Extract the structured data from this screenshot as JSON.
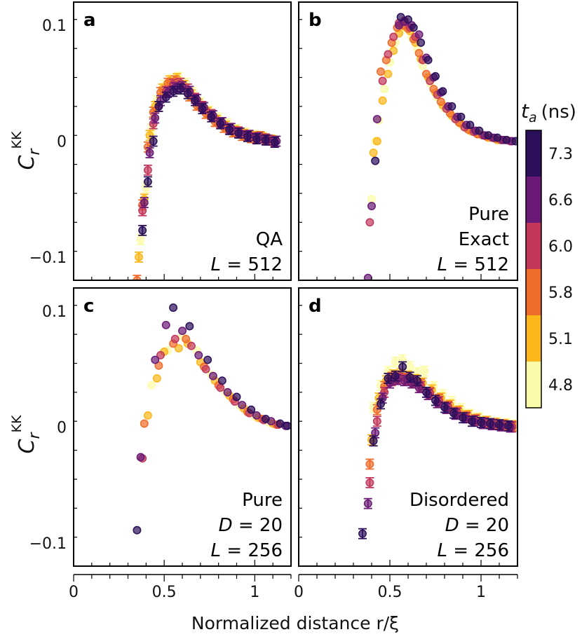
{
  "figure": {
    "xlabel": "Normalized distance r/ξ",
    "ylabel_main": "C",
    "ylabel_sub": "r",
    "ylabel_sup": "KK",
    "x_ticks": [
      "0",
      "0.5",
      "1"
    ],
    "y_ticks": [
      "0.1",
      "0",
      "−0.1"
    ]
  },
  "colorbar": {
    "title_main": "t",
    "title_sub": "a",
    "title_unit": "(ns)",
    "labels": [
      "7.3",
      "6.6",
      "6.0",
      "5.8",
      "5.1",
      "4.8"
    ],
    "colors": [
      "#2c0f5a",
      "#6a1a76",
      "#c2375a",
      "#ef6b2a",
      "#fbb61a",
      "#fcfbaa"
    ]
  },
  "chart_data": [
    {
      "type": "scatter",
      "panel": "a",
      "annotation": [
        "QA",
        "L = 512"
      ],
      "xlim": [
        0,
        1.2
      ],
      "ylim": [
        -0.12,
        0.12
      ],
      "series": [
        {
          "color": "#fcfbaa",
          "x": [
            0.37,
            0.4,
            0.43,
            0.46,
            0.5,
            0.54,
            0.58,
            0.62,
            0.66,
            0.7,
            0.75,
            0.8,
            0.85,
            0.9,
            0.95,
            1.0,
            1.05,
            1.1
          ],
          "y": [
            -0.085,
            -0.04,
            0.01,
            0.035,
            0.048,
            0.053,
            0.055,
            0.05,
            0.042,
            0.033,
            0.026,
            0.02,
            0.015,
            0.01,
            0.007,
            0.005,
            0.003,
            0.001
          ]
        },
        {
          "color": "#fbb61a",
          "x": [
            0.36,
            0.39,
            0.42,
            0.45,
            0.49,
            0.53,
            0.57,
            0.61,
            0.65,
            0.69,
            0.74,
            0.79,
            0.84,
            0.89,
            0.94,
            0.99,
            1.04,
            1.09
          ],
          "y": [
            -0.1,
            -0.05,
            0.005,
            0.03,
            0.045,
            0.052,
            0.054,
            0.048,
            0.04,
            0.032,
            0.025,
            0.018,
            0.013,
            0.009,
            0.006,
            0.004,
            0.003,
            0.001
          ]
        },
        {
          "color": "#ef6b2a",
          "x": [
            0.35,
            0.38,
            0.41,
            0.44,
            0.48,
            0.52,
            0.56,
            0.6,
            0.64,
            0.68,
            0.73,
            0.78,
            0.83,
            0.88,
            0.93,
            0.98,
            1.03,
            1.08
          ],
          "y": [
            -0.12,
            -0.055,
            -0.005,
            0.025,
            0.042,
            0.05,
            0.052,
            0.047,
            0.039,
            0.031,
            0.024,
            0.017,
            0.012,
            0.008,
            0.005,
            0.003,
            0.004,
            0.001
          ]
        },
        {
          "color": "#c2375a",
          "x": [
            0.38,
            0.41,
            0.44,
            0.47,
            0.51,
            0.55,
            0.59,
            0.63,
            0.67,
            0.71,
            0.76,
            0.81,
            0.86,
            0.91,
            0.96,
            1.01,
            1.06,
            1.11
          ],
          "y": [
            -0.06,
            -0.025,
            0.015,
            0.03,
            0.043,
            0.049,
            0.05,
            0.045,
            0.037,
            0.03,
            0.023,
            0.016,
            0.011,
            0.008,
            0.005,
            0.003,
            0.002,
            0.0
          ]
        },
        {
          "color": "#6a1a76",
          "x": [
            0.39,
            0.42,
            0.45,
            0.48,
            0.52,
            0.56,
            0.6,
            0.64,
            0.68,
            0.72,
            0.77,
            0.82,
            0.87,
            0.92,
            0.97,
            1.02,
            1.07,
            1.12
          ],
          "y": [
            -0.053,
            -0.01,
            0.02,
            0.035,
            0.042,
            0.046,
            0.047,
            0.043,
            0.036,
            0.029,
            0.022,
            0.016,
            0.011,
            0.007,
            0.005,
            0.003,
            0.001,
            0.0
          ]
        },
        {
          "color": "#2c0f5a",
          "x": [
            0.38,
            0.41,
            0.44,
            0.47,
            0.51,
            0.55,
            0.59,
            0.63,
            0.67,
            0.71,
            0.76,
            0.81,
            0.86,
            0.91,
            0.96,
            1.01,
            1.06,
            1.11
          ],
          "y": [
            -0.077,
            -0.035,
            0.0,
            0.03,
            0.038,
            0.043,
            0.045,
            0.041,
            0.035,
            0.028,
            0.021,
            0.015,
            0.01,
            0.007,
            0.004,
            0.002,
            0.001,
            -0.001
          ]
        }
      ]
    },
    {
      "type": "scatter",
      "panel": "b",
      "annotation": [
        "Pure",
        "Exact",
        "L = 512"
      ],
      "xlim": [
        0,
        1.2
      ],
      "ylim": [
        -0.12,
        0.12
      ],
      "series": [
        {
          "color": "#fcfbaa",
          "x": [
            0.4,
            0.42,
            0.44,
            0.47,
            0.5,
            0.53,
            0.56,
            0.59,
            0.62,
            0.65,
            0.68,
            0.72,
            0.76,
            0.8,
            0.85,
            0.9,
            0.95,
            1.0,
            1.05,
            1.1
          ],
          "y": [
            -0.05,
            0.0,
            0.018,
            0.045,
            0.068,
            0.085,
            0.096,
            0.098,
            0.09,
            0.08,
            0.065,
            0.05,
            0.038,
            0.028,
            0.02,
            0.013,
            0.008,
            0.005,
            0.003,
            0.001
          ]
        },
        {
          "color": "#fbb61a",
          "x": [
            0.41,
            0.43,
            0.46,
            0.49,
            0.52,
            0.55,
            0.58,
            0.61,
            0.64,
            0.67,
            0.71,
            0.75,
            0.79,
            0.84,
            0.89,
            0.94,
            0.99,
            1.04,
            1.09
          ],
          "y": [
            -0.01,
            0.0,
            0.035,
            0.058,
            0.078,
            0.093,
            0.099,
            0.095,
            0.085,
            0.071,
            0.055,
            0.042,
            0.031,
            0.022,
            0.015,
            0.009,
            0.006,
            0.003,
            0.001
          ]
        },
        {
          "color": "#ef6b2a",
          "x": [
            0.45,
            0.48,
            0.51,
            0.54,
            0.57,
            0.6,
            0.63,
            0.66,
            0.7,
            0.74,
            0.78,
            0.83,
            0.88,
            0.93,
            0.98,
            1.03,
            1.08,
            1.13
          ],
          "y": [
            0.06,
            0.07,
            0.085,
            0.098,
            0.1,
            0.097,
            0.088,
            0.076,
            0.058,
            0.045,
            0.034,
            0.024,
            0.016,
            0.01,
            0.006,
            0.004,
            0.002,
            0.001
          ]
        },
        {
          "color": "#c2375a",
          "x": [
            0.39,
            0.46,
            0.49,
            0.52,
            0.55,
            0.58,
            0.61,
            0.64,
            0.68,
            0.72,
            0.76,
            0.81,
            0.86,
            0.91,
            0.96,
            1.01,
            1.06,
            1.11,
            1.16
          ],
          "y": [
            -0.07,
            0.052,
            0.075,
            0.09,
            0.102,
            0.104,
            0.098,
            0.09,
            0.07,
            0.052,
            0.04,
            0.028,
            0.019,
            0.012,
            0.008,
            0.005,
            0.003,
            0.001,
            0.0
          ]
        },
        {
          "color": "#6a1a76",
          "x": [
            0.38,
            0.4,
            0.43,
            0.55,
            0.58,
            0.62,
            0.66,
            0.7,
            0.74,
            0.78,
            0.82,
            0.87,
            0.92,
            0.97,
            1.02,
            1.07,
            1.12,
            1.17
          ],
          "y": [
            -0.118,
            -0.056,
            0.019,
            0.1,
            0.103,
            0.1,
            0.092,
            0.072,
            0.055,
            0.042,
            0.03,
            0.021,
            0.014,
            0.009,
            0.005,
            0.003,
            0.001,
            0.0
          ]
        },
        {
          "color": "#2c0f5a",
          "x": [
            0.42,
            0.56,
            0.6,
            0.63,
            0.67,
            0.71,
            0.75,
            0.79,
            0.84,
            0.89,
            0.94,
            0.99,
            1.04,
            1.09,
            1.14,
            1.19
          ],
          "y": [
            -0.017,
            0.107,
            0.105,
            0.098,
            0.085,
            0.07,
            0.056,
            0.043,
            0.03,
            0.021,
            0.014,
            0.009,
            0.005,
            0.003,
            0.001,
            0.0
          ]
        }
      ]
    },
    {
      "type": "scatter",
      "panel": "c",
      "annotation": [
        "Pure",
        "D = 20",
        "L = 256"
      ],
      "xlim": [
        0,
        1.2
      ],
      "ylim": [
        -0.12,
        0.12
      ],
      "series": [
        {
          "color": "#fcfbaa",
          "x": [
            0.43,
            0.52,
            0.6,
            0.68,
            0.76,
            0.84,
            0.92,
            1.0,
            1.08
          ],
          "y": [
            0.036,
            0.066,
            0.078,
            0.066,
            0.045,
            0.03,
            0.018,
            0.009,
            0.004
          ]
        },
        {
          "color": "#fbb61a",
          "x": [
            0.41,
            0.46,
            0.5,
            0.58,
            0.63,
            0.7,
            0.78,
            0.86,
            0.94,
            1.02,
            1.1
          ],
          "y": [
            0.01,
            0.042,
            0.065,
            0.068,
            0.072,
            0.056,
            0.04,
            0.027,
            0.016,
            0.008,
            0.003
          ]
        },
        {
          "color": "#ef6b2a",
          "x": [
            0.39,
            0.47,
            0.55,
            0.62,
            0.72,
            0.8,
            0.88,
            0.96,
            1.04,
            1.12
          ],
          "y": [
            0.003,
            0.053,
            0.072,
            0.076,
            0.052,
            0.036,
            0.024,
            0.013,
            0.007,
            0.002
          ]
        },
        {
          "color": "#c2375a",
          "x": [
            0.38,
            0.48,
            0.56,
            0.65,
            0.73,
            0.81,
            0.89,
            0.97,
            1.05,
            1.13
          ],
          "y": [
            -0.027,
            0.062,
            0.076,
            0.07,
            0.05,
            0.034,
            0.022,
            0.012,
            0.006,
            0.002
          ]
        },
        {
          "color": "#6a1a76",
          "x": [
            0.37,
            0.45,
            0.51,
            0.6,
            0.69,
            0.77,
            0.85,
            0.93,
            1.01,
            1.09,
            1.17
          ],
          "y": [
            -0.026,
            0.058,
            0.088,
            0.083,
            0.062,
            0.044,
            0.03,
            0.019,
            0.01,
            0.005,
            0.001
          ]
        },
        {
          "color": "#2c0f5a",
          "x": [
            0.35,
            0.55,
            0.64,
            0.74,
            0.82,
            0.9,
            0.98,
            1.06,
            1.14,
            1.18
          ],
          "y": [
            -0.089,
            0.103,
            0.087,
            0.058,
            0.04,
            0.026,
            0.015,
            0.007,
            0.003,
            0.001
          ]
        }
      ]
    },
    {
      "type": "scatter",
      "panel": "d",
      "annotation": [
        "Disordered",
        "D = 20",
        "L = 256"
      ],
      "xlim": [
        0,
        1.2
      ],
      "ylim": [
        -0.12,
        0.12
      ],
      "series": [
        {
          "color": "#fcfbaa",
          "x": [
            0.41,
            0.45,
            0.49,
            0.53,
            0.57,
            0.61,
            0.65,
            0.69,
            0.74,
            0.79,
            0.84,
            0.89,
            0.94,
            0.99,
            1.04,
            1.09,
            1.14,
            1.19
          ],
          "y": [
            0.017,
            0.036,
            0.048,
            0.056,
            0.058,
            0.052,
            0.047,
            0.048,
            0.035,
            0.028,
            0.022,
            0.016,
            0.011,
            0.008,
            0.005,
            0.004,
            0.003,
            0.002
          ]
        },
        {
          "color": "#fbb61a",
          "x": [
            0.4,
            0.44,
            0.48,
            0.52,
            0.56,
            0.6,
            0.64,
            0.68,
            0.73,
            0.78,
            0.83,
            0.88,
            0.93,
            0.98,
            1.03,
            1.08,
            1.13,
            1.18
          ],
          "y": [
            -0.011,
            0.025,
            0.04,
            0.045,
            0.046,
            0.044,
            0.041,
            0.038,
            0.032,
            0.025,
            0.019,
            0.014,
            0.01,
            0.007,
            0.005,
            0.003,
            0.002,
            0.001
          ]
        },
        {
          "color": "#ef6b2a",
          "x": [
            0.39,
            0.43,
            0.47,
            0.51,
            0.55,
            0.59,
            0.63,
            0.67,
            0.72,
            0.77,
            0.82,
            0.87,
            0.92,
            0.97,
            1.02,
            1.07,
            1.12,
            1.17
          ],
          "y": [
            -0.032,
            0.015,
            0.035,
            0.043,
            0.044,
            0.042,
            0.04,
            0.037,
            0.03,
            0.024,
            0.018,
            0.013,
            0.009,
            0.006,
            0.004,
            0.003,
            0.002,
            0.001
          ]
        },
        {
          "color": "#c2375a",
          "x": [
            0.39,
            0.43,
            0.47,
            0.51,
            0.55,
            0.59,
            0.63,
            0.67,
            0.72,
            0.77,
            0.82,
            0.87,
            0.92,
            0.97,
            1.02,
            1.07,
            1.12,
            1.17
          ],
          "y": [
            -0.048,
            0.005,
            0.03,
            0.04,
            0.042,
            0.041,
            0.039,
            0.035,
            0.029,
            0.022,
            0.017,
            0.012,
            0.008,
            0.006,
            0.004,
            0.002,
            0.001,
            0.0
          ]
        },
        {
          "color": "#6a1a76",
          "x": [
            0.38,
            0.42,
            0.46,
            0.5,
            0.54,
            0.58,
            0.62,
            0.66,
            0.71,
            0.76,
            0.81,
            0.86,
            0.91,
            0.96,
            1.01,
            1.06,
            1.11,
            1.16
          ],
          "y": [
            -0.066,
            -0.005,
            0.025,
            0.038,
            0.041,
            0.04,
            0.038,
            0.034,
            0.028,
            0.021,
            0.016,
            0.011,
            0.008,
            0.005,
            0.003,
            0.002,
            0.001,
            0.0
          ]
        },
        {
          "color": "#2c0f5a",
          "x": [
            0.35,
            0.41,
            0.45,
            0.49,
            0.53,
            0.57,
            0.61,
            0.65,
            0.7,
            0.75,
            0.8,
            0.85,
            0.9,
            0.95,
            1.0,
            1.05,
            1.1,
            1.15
          ],
          "y": [
            -0.092,
            -0.012,
            0.02,
            0.042,
            0.044,
            0.052,
            0.043,
            0.04,
            0.03,
            0.023,
            0.017,
            0.012,
            0.008,
            0.005,
            0.004,
            0.003,
            0.002,
            0.001
          ]
        }
      ]
    }
  ]
}
